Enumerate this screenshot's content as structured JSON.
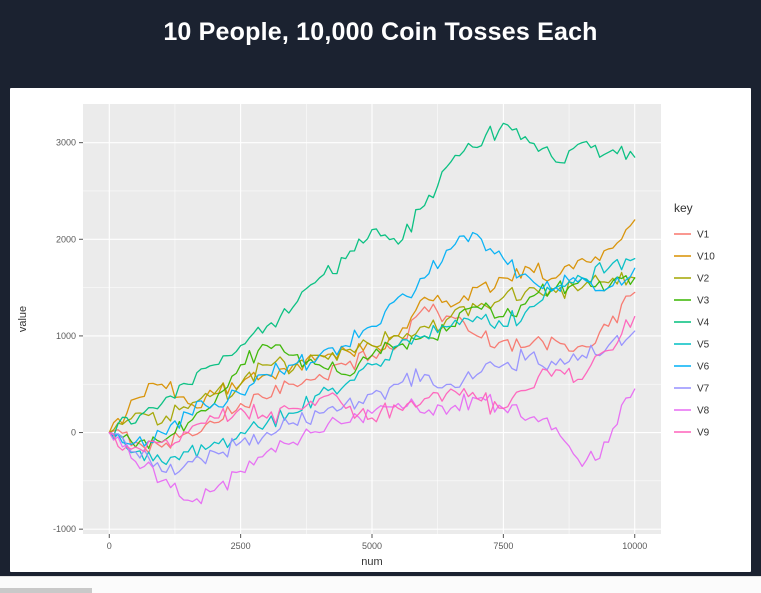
{
  "title": "10 People, 10,000 Coin Tosses Each",
  "colors": {
    "background": "#1b2230",
    "card": "#ffffff",
    "panel": "#ebebeb",
    "grid": "#ffffff",
    "title_text": "#ffffff",
    "axis_text": "#5a5a5a",
    "axis_title_text": "#333333"
  },
  "chart_data": {
    "type": "line",
    "title": "10 People, 10,000 Coin Tosses Each",
    "xlabel": "num",
    "ylabel": "value",
    "legend_title": "key",
    "legend_position": "right",
    "grid": true,
    "xlim": [
      -500,
      10500
    ],
    "ylim": [
      -1050,
      3400
    ],
    "xticks": [
      0,
      2500,
      5000,
      7500,
      10000
    ],
    "yticks": [
      -1000,
      0,
      1000,
      2000,
      3000
    ],
    "x": [
      0,
      500,
      1000,
      1500,
      2000,
      2500,
      3000,
      3500,
      4000,
      4500,
      5000,
      5500,
      6000,
      6500,
      7000,
      7500,
      8000,
      8500,
      9000,
      9500,
      10000
    ],
    "series": [
      {
        "name": "V1",
        "color": "#F8766D",
        "values": [
          0,
          -100,
          -150,
          0,
          100,
          300,
          350,
          500,
          600,
          700,
          800,
          900,
          1300,
          1200,
          1000,
          950,
          900,
          950,
          900,
          1100,
          1450
        ]
      },
      {
        "name": "V10",
        "color": "#D89000",
        "values": [
          0,
          350,
          500,
          300,
          400,
          500,
          600,
          700,
          800,
          850,
          900,
          1000,
          1400,
          1300,
          1500,
          1600,
          1700,
          1600,
          1800,
          1900,
          2200
        ]
      },
      {
        "name": "V2",
        "color": "#A3A500",
        "values": [
          0,
          200,
          100,
          250,
          400,
          500,
          700,
          650,
          800,
          850,
          900,
          1000,
          1100,
          1200,
          1300,
          1400,
          1500,
          1450,
          1500,
          1550,
          1600
        ]
      },
      {
        "name": "V3",
        "color": "#39B600",
        "values": [
          0,
          -150,
          -100,
          100,
          300,
          700,
          900,
          800,
          700,
          600,
          800,
          900,
          1000,
          1100,
          1300,
          1200,
          1400,
          1500,
          1600,
          1500,
          1600
        ]
      },
      {
        "name": "V4",
        "color": "#00BF7D",
        "values": [
          0,
          100,
          300,
          500,
          700,
          900,
          1100,
          1300,
          1600,
          1800,
          2100,
          1950,
          2350,
          2800,
          2950,
          3200,
          3000,
          2800,
          3000,
          2900,
          2850
        ]
      },
      {
        "name": "V5",
        "color": "#00BFC4",
        "values": [
          0,
          -200,
          -300,
          -200,
          -100,
          0,
          100,
          200,
          400,
          500,
          700,
          900,
          1000,
          1100,
          1200,
          1100,
          1300,
          1500,
          1600,
          1700,
          1800
        ]
      },
      {
        "name": "V6",
        "color": "#00B0F6",
        "values": [
          0,
          -100,
          0,
          200,
          300,
          400,
          600,
          700,
          800,
          900,
          1100,
          1400,
          1600,
          1900,
          2050,
          1800,
          1600,
          1500,
          1600,
          1500,
          1700
        ]
      },
      {
        "name": "V7",
        "color": "#9590FF",
        "values": [
          0,
          -200,
          -400,
          -300,
          -200,
          -100,
          0,
          100,
          200,
          300,
          400,
          500,
          600,
          500,
          600,
          700,
          800,
          700,
          800,
          900,
          1050
        ]
      },
      {
        "name": "V8",
        "color": "#E76BF3",
        "values": [
          0,
          -300,
          -500,
          -700,
          -600,
          -400,
          -200,
          -100,
          0,
          100,
          200,
          300,
          200,
          250,
          350,
          250,
          150,
          50,
          -350,
          -100,
          450
        ]
      },
      {
        "name": "V9",
        "color": "#FF62BC",
        "values": [
          0,
          -150,
          -100,
          0,
          150,
          250,
          150,
          250,
          350,
          250,
          150,
          250,
          350,
          450,
          350,
          250,
          450,
          650,
          550,
          850,
          1200
        ]
      }
    ]
  }
}
